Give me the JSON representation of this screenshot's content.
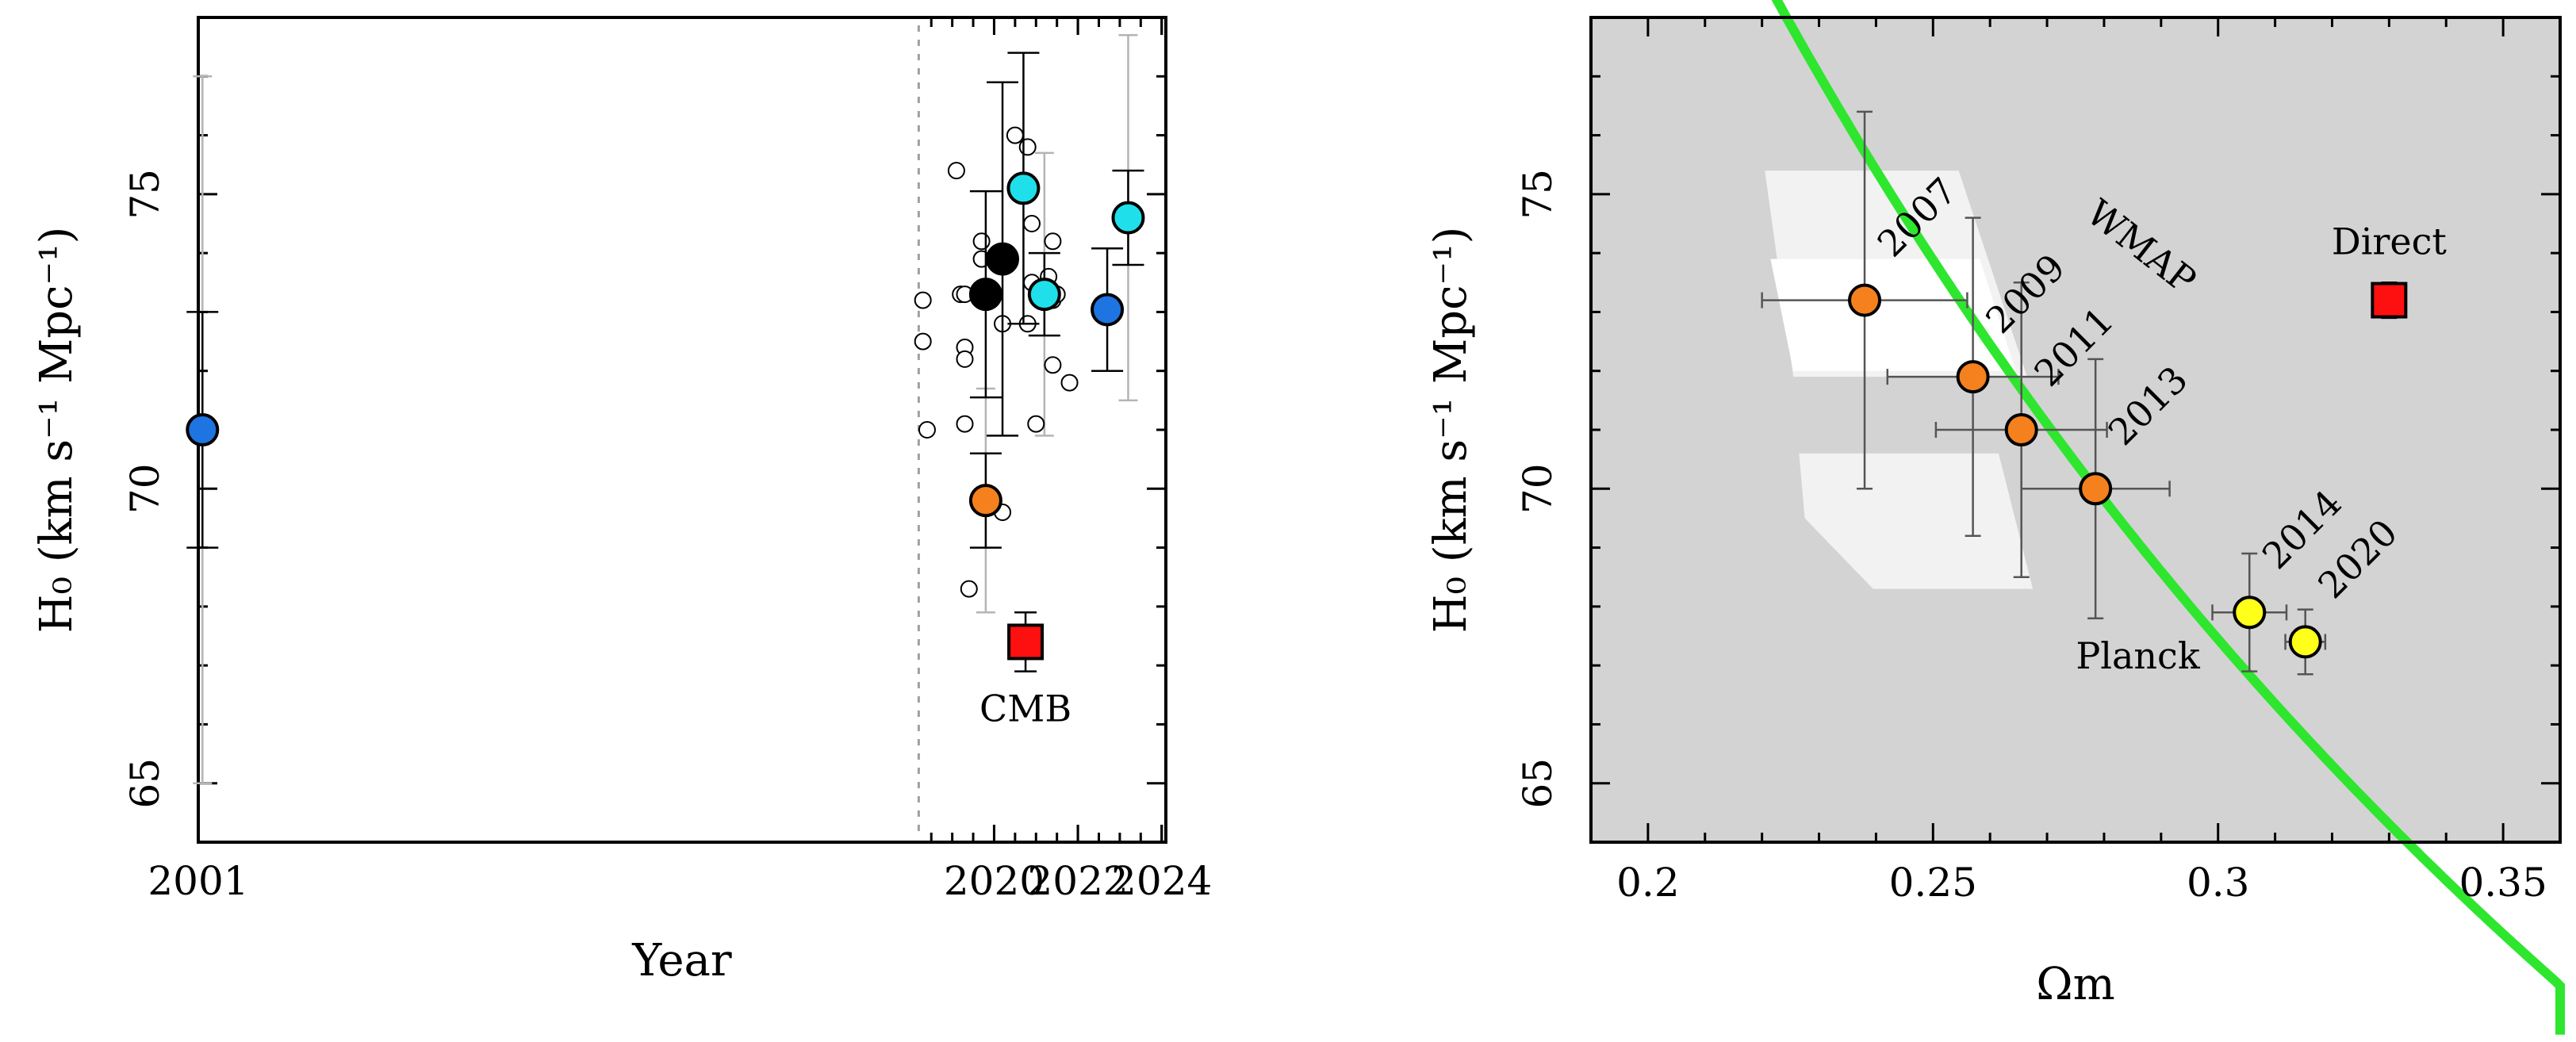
{
  "colors": {
    "blue": "#1e74e0",
    "cyan": "#1fe0ea",
    "black": "#000000",
    "orange": "#f5801e",
    "red": "#ff1010",
    "yellow": "#ffff1a",
    "green": "#2ee62e",
    "panel_bg": "#d3d3d3",
    "wmap_region": "#f2f2f2",
    "light_errorbar": "#b4b4b4"
  },
  "chart_data": [
    {
      "type": "scatter",
      "xlabel": "Year",
      "ylabel": "H₀ (km s⁻¹ Mpc⁻¹)",
      "xlim": [
        2001,
        2024.1
      ],
      "ylim": [
        64,
        78
      ],
      "x_ticks": [
        {
          "pos": 2001,
          "label": "2001"
        },
        {
          "pos": 2020,
          "label": "2020"
        },
        {
          "pos": 2022,
          "label": "2022"
        },
        {
          "pos": 2024,
          "label": "2024"
        }
      ],
      "y_ticks": [
        65,
        70,
        75
      ],
      "break_marker_x": 2018.2,
      "grid": false,
      "labels": {
        "cmb": "CMB"
      },
      "open_points": [
        {
          "x": 2018.3,
          "y": 73.2
        },
        {
          "x": 2018.3,
          "y": 72.5
        },
        {
          "x": 2018.4,
          "y": 71.0
        },
        {
          "x": 2019.1,
          "y": 75.4
        },
        {
          "x": 2019.2,
          "y": 73.3
        },
        {
          "x": 2019.3,
          "y": 73.3
        },
        {
          "x": 2019.3,
          "y": 72.4
        },
        {
          "x": 2019.3,
          "y": 72.2
        },
        {
          "x": 2019.3,
          "y": 71.1
        },
        {
          "x": 2019.4,
          "y": 68.3
        },
        {
          "x": 2019.7,
          "y": 74.2
        },
        {
          "x": 2019.7,
          "y": 73.9
        },
        {
          "x": 2020.1,
          "y": 73.9
        },
        {
          "x": 2020.2,
          "y": 72.8
        },
        {
          "x": 2020.2,
          "y": 69.6
        },
        {
          "x": 2020.5,
          "y": 76.0
        },
        {
          "x": 2020.8,
          "y": 75.8
        },
        {
          "x": 2020.8,
          "y": 75.1
        },
        {
          "x": 2020.8,
          "y": 72.8
        },
        {
          "x": 2020.9,
          "y": 74.5
        },
        {
          "x": 2020.9,
          "y": 73.5
        },
        {
          "x": 2020.9,
          "y": 67.4
        },
        {
          "x": 2021.0,
          "y": 71.1
        },
        {
          "x": 2021.1,
          "y": 73.4
        },
        {
          "x": 2021.3,
          "y": 73.6
        },
        {
          "x": 2021.4,
          "y": 74.2
        },
        {
          "x": 2021.4,
          "y": 73.2
        },
        {
          "x": 2021.4,
          "y": 72.1
        },
        {
          "x": 2021.5,
          "y": 73.3
        },
        {
          "x": 2021.8,
          "y": 71.8
        }
      ],
      "measurements": [
        {
          "x": 2001.1,
          "y": 71.0,
          "err": 2.0,
          "err_faint": 6.0,
          "color": "blue"
        },
        {
          "x": 2019.8,
          "y": 69.8,
          "err": 0.8,
          "err_faint": 1.9,
          "color": "orange"
        },
        {
          "x": 2019.8,
          "y": 73.3,
          "err": 1.75,
          "color": "black"
        },
        {
          "x": 2020.2,
          "y": 73.9,
          "err": 3.0,
          "color": "black"
        },
        {
          "x": 2020.7,
          "y": 75.1,
          "err": 2.3,
          "color": "cyan"
        },
        {
          "x": 2021.2,
          "y": 73.3,
          "err": 0.7,
          "err_faint": 2.4,
          "color": "cyan"
        },
        {
          "x": 2022.7,
          "y": 73.04,
          "err": 1.04,
          "color": "blue"
        },
        {
          "x": 2023.2,
          "y": 74.6,
          "err": 0.8,
          "err_faint": 3.1,
          "color": "cyan"
        }
      ],
      "cmb_point": {
        "x": 2020.75,
        "y": 67.4,
        "err": 0.5,
        "color": "red"
      }
    },
    {
      "type": "scatter",
      "xlabel": "Ωm",
      "ylabel": "H₀ (km s⁻¹ Mpc⁻¹)",
      "xlim": [
        0.19,
        0.36
      ],
      "ylim": [
        64,
        78
      ],
      "x_ticks": [
        0.2,
        0.25,
        0.3,
        0.35
      ],
      "y_ticks": [
        65,
        70,
        75
      ],
      "grid": false,
      "labels": {
        "wmap": "WMAP",
        "planck": "Planck",
        "direct": "Direct"
      },
      "curve": {
        "relation": "H0 = 70 * (0.2785 / Omega_m)^0.5",
        "color": "green"
      },
      "points": [
        {
          "label": "2007",
          "x": 0.238,
          "y": 73.2,
          "xerr": 0.018,
          "yerr": 3.2,
          "color": "orange"
        },
        {
          "label": "2009",
          "x": 0.257,
          "y": 71.9,
          "xerr": 0.015,
          "yerr": 2.7,
          "color": "orange"
        },
        {
          "label": "2011",
          "x": 0.2655,
          "y": 71.0,
          "xerr": 0.015,
          "yerr": 2.5,
          "color": "orange"
        },
        {
          "label": "2013",
          "x": 0.2785,
          "y": 70.0,
          "xerr": 0.013,
          "yerr": 2.2,
          "color": "orange"
        },
        {
          "label": "2014",
          "x": 0.3055,
          "y": 67.9,
          "xerr": 0.0065,
          "yerr": 1.0,
          "color": "yellow"
        },
        {
          "label": "2020",
          "x": 0.3153,
          "y": 67.4,
          "xerr": 0.0035,
          "yerr": 0.55,
          "color": "yellow"
        }
      ],
      "direct_point": {
        "x": 0.33,
        "y": 73.2,
        "yerr": 0.3,
        "color": "red"
      }
    }
  ]
}
